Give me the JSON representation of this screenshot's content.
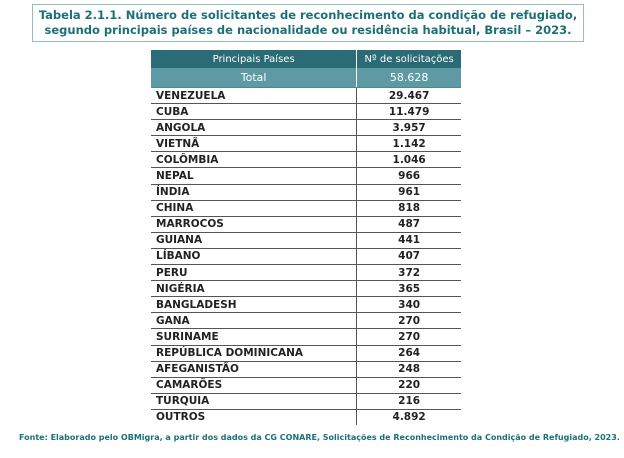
{
  "title": {
    "line1": "Tabela 2.1.1. Número de solicitantes de reconhecimento da condição de refugiado,",
    "line2": "segundo principais países de nacionalidade ou residência habitual, Brasil – 2023."
  },
  "table": {
    "headers": [
      "Principais Países",
      "Nº de solicitações"
    ],
    "total": {
      "label": "Total",
      "value": "58.628"
    },
    "rows": [
      {
        "country": "VENEZUELA",
        "value": "29.467"
      },
      {
        "country": "CUBA",
        "value": "11.479"
      },
      {
        "country": "ANGOLA",
        "value": "3.957"
      },
      {
        "country": "VIETNÃ",
        "value": "1.142"
      },
      {
        "country": "COLÔMBIA",
        "value": "1.046"
      },
      {
        "country": "NEPAL",
        "value": "966"
      },
      {
        "country": "ÍNDIA",
        "value": "961"
      },
      {
        "country": "CHINA",
        "value": "818"
      },
      {
        "country": "MARROCOS",
        "value": "487"
      },
      {
        "country": "GUIANA",
        "value": "441"
      },
      {
        "country": "LÍBANO",
        "value": "407"
      },
      {
        "country": "PERU",
        "value": "372"
      },
      {
        "country": "NIGÉRIA",
        "value": "365"
      },
      {
        "country": "BANGLADESH",
        "value": "340"
      },
      {
        "country": "GANA",
        "value": "270"
      },
      {
        "country": "SURINAME",
        "value": "270"
      },
      {
        "country": "REPÚBLICA DOMINICANA",
        "value": "264"
      },
      {
        "country": "AFEGANISTÃO",
        "value": "248"
      },
      {
        "country": "CAMARÕES",
        "value": "220"
      },
      {
        "country": "TURQUIA",
        "value": "216"
      },
      {
        "country": "OUTROS",
        "value": "4.892"
      }
    ]
  },
  "footnote": "Fonte: Elaborado pelo OBMigra, a partir dos dados da CG CONARE, Solicitações de Reconhecimento da Condição de Refugiado, 2023.",
  "colors": {
    "title_text": "#1d6f78",
    "header_bg": "#2b6b76",
    "total_bg": "#5d9aa3"
  }
}
